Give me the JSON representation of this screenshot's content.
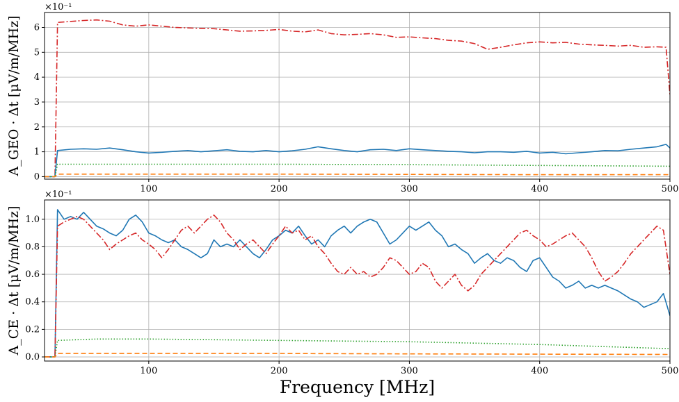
{
  "chart_data": [
    {
      "type": "line",
      "ylabel": "A_GEO · Δt [μV/m/MHz]",
      "y_scale_label": "×10⁻¹",
      "xlim": [
        20,
        500
      ],
      "ylim": [
        -0.1,
        6.6
      ],
      "grid": true,
      "xticks": [
        "100",
        "200",
        "300",
        "400",
        "500"
      ],
      "yticks": [
        "0",
        "1",
        "2",
        "3",
        "4",
        "5",
        "6"
      ],
      "series": [
        {
          "color": "#d62728",
          "dash": "dashdot",
          "x": [
            20,
            28,
            30,
            50,
            60,
            70,
            80,
            90,
            100,
            110,
            120,
            130,
            140,
            150,
            160,
            170,
            180,
            190,
            200,
            210,
            220,
            230,
            240,
            250,
            260,
            270,
            280,
            290,
            300,
            310,
            320,
            330,
            340,
            350,
            360,
            370,
            380,
            390,
            400,
            410,
            420,
            430,
            440,
            450,
            460,
            470,
            480,
            490,
            497,
            500
          ],
          "y": [
            0,
            0,
            6.2,
            6.28,
            6.3,
            6.25,
            6.1,
            6.05,
            6.1,
            6.05,
            6.0,
            5.98,
            5.96,
            5.95,
            5.9,
            5.85,
            5.86,
            5.88,
            5.92,
            5.85,
            5.82,
            5.9,
            5.75,
            5.7,
            5.72,
            5.75,
            5.7,
            5.6,
            5.62,
            5.58,
            5.55,
            5.48,
            5.45,
            5.35,
            5.12,
            5.2,
            5.3,
            5.38,
            5.42,
            5.38,
            5.4,
            5.33,
            5.3,
            5.28,
            5.25,
            5.28,
            5.2,
            5.22,
            5.2,
            3.3
          ]
        },
        {
          "color": "#1f77b4",
          "dash": "solid",
          "x": [
            20,
            28,
            30,
            40,
            50,
            60,
            70,
            80,
            90,
            100,
            110,
            120,
            130,
            140,
            150,
            160,
            170,
            180,
            190,
            200,
            210,
            220,
            230,
            240,
            250,
            260,
            270,
            280,
            290,
            300,
            310,
            320,
            330,
            340,
            350,
            360,
            370,
            380,
            390,
            400,
            410,
            420,
            430,
            440,
            450,
            460,
            470,
            480,
            490,
            497,
            500
          ],
          "y": [
            0,
            0,
            1.05,
            1.1,
            1.12,
            1.1,
            1.15,
            1.08,
            1.0,
            0.95,
            0.98,
            1.02,
            1.05,
            1.0,
            1.04,
            1.08,
            1.02,
            1.0,
            1.05,
            1.0,
            1.04,
            1.1,
            1.2,
            1.12,
            1.05,
            1.0,
            1.08,
            1.1,
            1.05,
            1.12,
            1.08,
            1.05,
            1.02,
            1.0,
            0.96,
            1.0,
            1.0,
            0.98,
            1.02,
            0.95,
            0.98,
            0.92,
            0.96,
            1.0,
            1.05,
            1.04,
            1.1,
            1.15,
            1.2,
            1.3,
            1.15
          ]
        },
        {
          "color": "#2ca02c",
          "dash": "dotted",
          "x": [
            20,
            28,
            30,
            100,
            200,
            300,
            400,
            500
          ],
          "y": [
            0,
            0,
            0.5,
            0.5,
            0.5,
            0.48,
            0.45,
            0.42
          ]
        },
        {
          "color": "#ff7f0e",
          "dash": "dashed",
          "x": [
            20,
            28,
            30,
            100,
            200,
            300,
            400,
            500
          ],
          "y": [
            0,
            0,
            0.1,
            0.1,
            0.1,
            0.09,
            0.08,
            0.08
          ]
        }
      ]
    },
    {
      "type": "line",
      "ylabel": "A_CE · Δt [μV/m/MHz]",
      "xlabel": "Frequency [MHz]",
      "y_scale_label": "×10⁻¹",
      "xlim": [
        20,
        500
      ],
      "ylim": [
        -0.03,
        1.14
      ],
      "grid": true,
      "xticks": [
        "100",
        "200",
        "300",
        "400",
        "500"
      ],
      "yticks": [
        "0.0",
        "0.2",
        "0.4",
        "0.6",
        "0.8",
        "1.0"
      ],
      "series": [
        {
          "color": "#1f77b4",
          "dash": "solid",
          "x": [
            20,
            28,
            30,
            35,
            40,
            45,
            50,
            55,
            60,
            65,
            70,
            75,
            80,
            85,
            90,
            95,
            100,
            105,
            110,
            115,
            120,
            125,
            130,
            135,
            140,
            145,
            150,
            155,
            160,
            165,
            170,
            175,
            180,
            185,
            190,
            195,
            200,
            205,
            210,
            215,
            220,
            225,
            230,
            235,
            240,
            245,
            250,
            255,
            260,
            265,
            270,
            275,
            280,
            285,
            290,
            295,
            300,
            305,
            310,
            315,
            320,
            325,
            330,
            335,
            340,
            345,
            350,
            355,
            360,
            365,
            370,
            375,
            380,
            385,
            390,
            395,
            400,
            405,
            410,
            415,
            420,
            425,
            430,
            435,
            440,
            445,
            450,
            455,
            460,
            465,
            470,
            475,
            480,
            485,
            490,
            495,
            500
          ],
          "y": [
            0,
            0,
            1.07,
            1.0,
            1.02,
            1.0,
            1.05,
            1.0,
            0.95,
            0.93,
            0.9,
            0.88,
            0.92,
            1.0,
            1.03,
            0.98,
            0.9,
            0.88,
            0.85,
            0.83,
            0.85,
            0.8,
            0.78,
            0.75,
            0.72,
            0.75,
            0.85,
            0.8,
            0.82,
            0.8,
            0.85,
            0.8,
            0.75,
            0.72,
            0.78,
            0.85,
            0.88,
            0.92,
            0.9,
            0.95,
            0.88,
            0.82,
            0.85,
            0.8,
            0.88,
            0.92,
            0.95,
            0.9,
            0.95,
            0.98,
            1.0,
            0.98,
            0.9,
            0.82,
            0.85,
            0.9,
            0.95,
            0.92,
            0.95,
            0.98,
            0.92,
            0.88,
            0.8,
            0.82,
            0.78,
            0.75,
            0.68,
            0.72,
            0.75,
            0.7,
            0.68,
            0.72,
            0.7,
            0.65,
            0.62,
            0.7,
            0.72,
            0.65,
            0.58,
            0.55,
            0.5,
            0.52,
            0.55,
            0.5,
            0.52,
            0.5,
            0.52,
            0.5,
            0.48,
            0.45,
            0.42,
            0.4,
            0.36,
            0.38,
            0.4,
            0.46,
            0.3
          ]
        },
        {
          "color": "#d62728",
          "dash": "dashdot",
          "x": [
            20,
            28,
            30,
            35,
            40,
            45,
            50,
            55,
            60,
            65,
            70,
            75,
            80,
            85,
            90,
            95,
            100,
            105,
            110,
            115,
            120,
            125,
            130,
            135,
            140,
            145,
            150,
            155,
            160,
            165,
            170,
            175,
            180,
            185,
            190,
            195,
            200,
            205,
            210,
            215,
            220,
            225,
            230,
            235,
            240,
            245,
            250,
            255,
            260,
            265,
            270,
            275,
            280,
            285,
            290,
            295,
            300,
            305,
            310,
            315,
            320,
            325,
            330,
            335,
            340,
            345,
            350,
            355,
            360,
            365,
            370,
            375,
            380,
            385,
            390,
            395,
            400,
            405,
            410,
            415,
            420,
            425,
            430,
            435,
            440,
            445,
            450,
            455,
            460,
            465,
            470,
            475,
            480,
            485,
            490,
            495,
            500
          ],
          "y": [
            0,
            0,
            0.95,
            0.98,
            1.0,
            1.02,
            1.0,
            0.95,
            0.9,
            0.85,
            0.78,
            0.82,
            0.85,
            0.88,
            0.9,
            0.85,
            0.82,
            0.78,
            0.72,
            0.78,
            0.85,
            0.92,
            0.95,
            0.9,
            0.95,
            1.0,
            1.03,
            0.98,
            0.9,
            0.85,
            0.78,
            0.82,
            0.85,
            0.8,
            0.75,
            0.82,
            0.88,
            0.95,
            0.9,
            0.92,
            0.85,
            0.88,
            0.8,
            0.75,
            0.68,
            0.62,
            0.6,
            0.65,
            0.6,
            0.62,
            0.58,
            0.6,
            0.65,
            0.72,
            0.7,
            0.65,
            0.6,
            0.62,
            0.68,
            0.65,
            0.55,
            0.5,
            0.55,
            0.6,
            0.52,
            0.48,
            0.52,
            0.6,
            0.65,
            0.7,
            0.75,
            0.8,
            0.85,
            0.9,
            0.92,
            0.88,
            0.85,
            0.8,
            0.82,
            0.85,
            0.88,
            0.9,
            0.85,
            0.8,
            0.72,
            0.62,
            0.55,
            0.58,
            0.62,
            0.68,
            0.75,
            0.8,
            0.85,
            0.9,
            0.95,
            0.92,
            0.6
          ]
        },
        {
          "color": "#2ca02c",
          "dash": "dotted",
          "x": [
            20,
            28,
            30,
            60,
            100,
            200,
            300,
            400,
            500
          ],
          "y": [
            0,
            0,
            0.12,
            0.13,
            0.13,
            0.12,
            0.11,
            0.09,
            0.06
          ]
        },
        {
          "color": "#ff7f0e",
          "dash": "dashed",
          "x": [
            20,
            28,
            30,
            100,
            200,
            300,
            400,
            500
          ],
          "y": [
            0,
            0,
            0.025,
            0.025,
            0.025,
            0.022,
            0.02,
            0.018
          ]
        }
      ]
    }
  ]
}
